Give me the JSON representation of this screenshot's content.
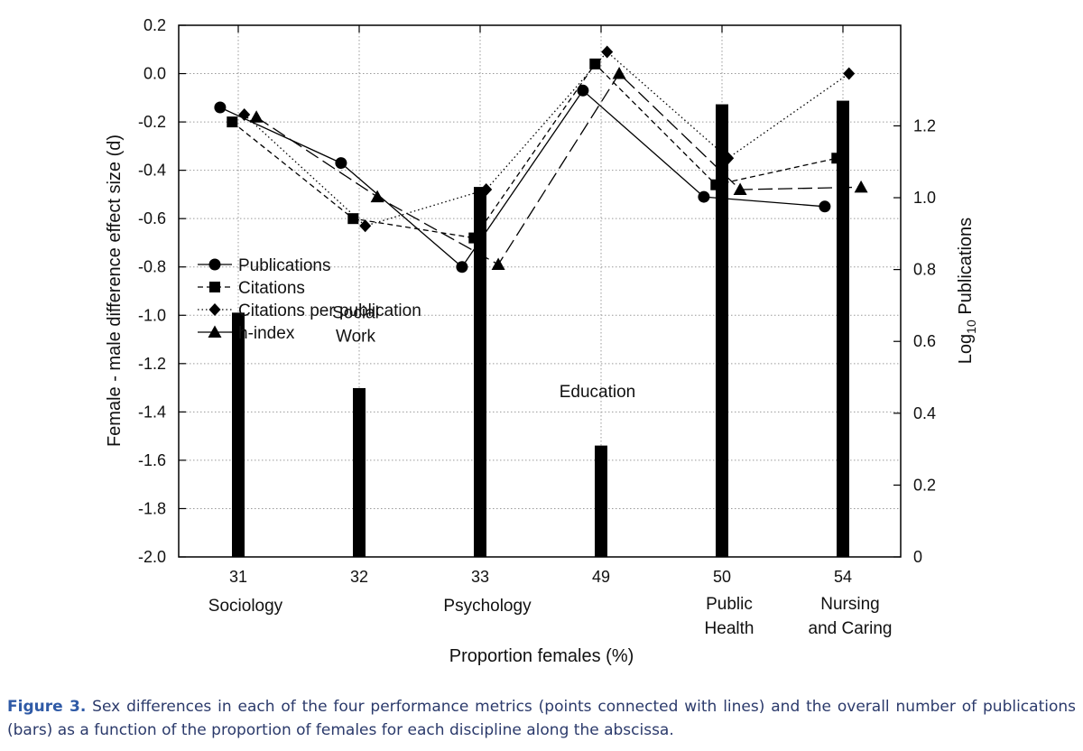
{
  "chart_data": {
    "type": "line",
    "xlabel": "Proportion females (%)",
    "ylabel": "Female - male difference effect size (d)",
    "y2label": "Log10 Publications",
    "y2label_main": "Log",
    "y2label_sub": "10",
    "y2label_rest": " Publications",
    "ylim": [
      -2.0,
      0.2
    ],
    "y2lim": [
      0,
      1.48
    ],
    "y_ticks": [
      "0.2",
      "0.0",
      "-0.2",
      "-0.4",
      "-0.6",
      "-0.8",
      "-1.0",
      "-1.2",
      "-1.4",
      "-1.6",
      "-1.8",
      "-2.0"
    ],
    "y_tick_values": [
      0.2,
      0.0,
      -0.2,
      -0.4,
      -0.6,
      -0.8,
      -1.0,
      -1.2,
      -1.4,
      -1.6,
      -1.8,
      -2.0
    ],
    "y2_ticks": [
      "1.2",
      "1.0",
      "0.8",
      "0.6",
      "0.4",
      "0.2",
      "0"
    ],
    "y2_tick_values": [
      1.2,
      1.0,
      0.8,
      0.6,
      0.4,
      0.2,
      0
    ],
    "grid": true,
    "legend_position": "left-middle",
    "categories": [
      "31",
      "32",
      "33",
      "49",
      "50",
      "54"
    ],
    "category_names": [
      [
        "Sociology"
      ],
      [],
      [
        "Psychology"
      ],
      [],
      [
        "Public",
        "Health"
      ],
      [
        "Nursing",
        "and Caring"
      ]
    ],
    "annotations": [
      {
        "lines": [
          "Social",
          "Work"
        ],
        "category_index": 1,
        "y2": 0.62
      },
      {
        "lines": [
          "Education"
        ],
        "category_index": 3,
        "y2": 0.4
      }
    ],
    "bars": {
      "name": "Log10 Publications",
      "values": [
        0.68,
        0.47,
        1.03,
        0.31,
        1.26,
        1.27
      ]
    },
    "series": [
      {
        "name": "Publications",
        "marker": "circle",
        "dash": "solid",
        "values": [
          -0.14,
          -0.37,
          -0.8,
          -0.07,
          -0.51,
          -0.55
        ],
        "offsets": [
          -0.15,
          -0.15,
          -0.15,
          -0.15,
          -0.15,
          -0.15
        ]
      },
      {
        "name": "Citations",
        "marker": "square",
        "dash": "short",
        "values": [
          -0.2,
          -0.6,
          -0.68,
          0.04,
          -0.46,
          -0.35
        ],
        "offsets": [
          -0.05,
          -0.05,
          -0.05,
          -0.05,
          -0.05,
          -0.05
        ]
      },
      {
        "name": "Citations per publication",
        "marker": "diamond",
        "dash": "dotted",
        "values": [
          -0.17,
          -0.63,
          -0.48,
          0.09,
          -0.35,
          0.0
        ],
        "offsets": [
          0.05,
          0.05,
          0.05,
          0.05,
          0.05,
          0.05
        ]
      },
      {
        "name": "h-index",
        "marker": "triangle",
        "dash": "long",
        "values": [
          -0.18,
          -0.51,
          -0.79,
          0.0,
          -0.48,
          -0.47
        ],
        "offsets": [
          0.15,
          0.15,
          0.15,
          0.15,
          0.15,
          0.15
        ]
      }
    ]
  },
  "caption": {
    "label": "Figure 3.",
    "text": " Sex differences in each of the four performance metrics (points connected with lines) and the overall number of publications (bars) as a function of the proportion of females for each discipline along the abscissa."
  }
}
